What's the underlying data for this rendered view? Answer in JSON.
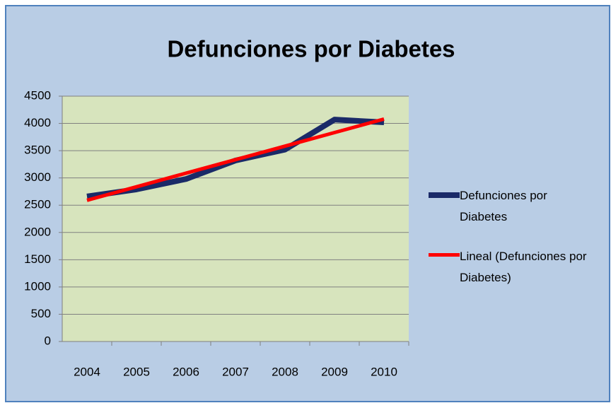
{
  "chart_data": {
    "type": "line",
    "title": "Defunciones por Diabetes",
    "categories": [
      "2004",
      "2005",
      "2006",
      "2007",
      "2008",
      "2009",
      "2010"
    ],
    "series": [
      {
        "name": "Defunciones por Diabetes",
        "color": "#1a2a68",
        "values": [
          2660,
          2790,
          2980,
          3320,
          3520,
          4070,
          4020
        ]
      },
      {
        "name": "Lineal (Defunciones por Diabetes)",
        "color": "#ff0000",
        "values": [
          2590,
          2838,
          3087,
          3335,
          3583,
          3832,
          4080
        ]
      }
    ],
    "ylim": [
      0,
      4500
    ],
    "yticks": [
      0,
      500,
      1000,
      1500,
      2000,
      2500,
      3000,
      3500,
      4000,
      4500
    ],
    "grid": true,
    "legend": "right"
  }
}
